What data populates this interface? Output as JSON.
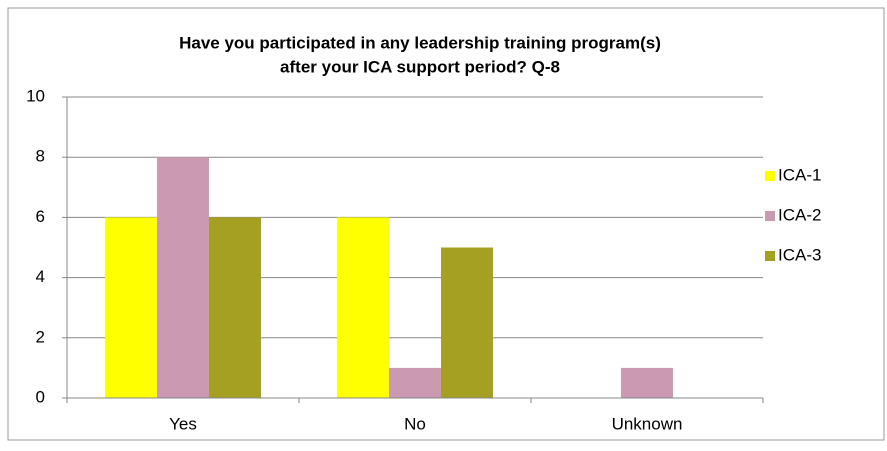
{
  "chart_data": {
    "type": "bar",
    "title": [
      "Have you participated in any leadership training program(s)",
      "after your ICA support period? Q-8"
    ],
    "categories": [
      "Yes",
      "No",
      "Unknown"
    ],
    "series": [
      {
        "name": "ICA-1",
        "color": "#ffff00",
        "values": [
          6,
          6,
          0
        ]
      },
      {
        "name": "ICA-2",
        "color": "#cc99b3",
        "values": [
          8,
          1,
          1
        ]
      },
      {
        "name": "ICA-3",
        "color": "#a6a022",
        "values": [
          6,
          5,
          0
        ]
      }
    ],
    "ylim": [
      0,
      10
    ],
    "yticks": [
      0,
      2,
      4,
      6,
      8,
      10
    ],
    "grid": true,
    "legend": "right"
  }
}
